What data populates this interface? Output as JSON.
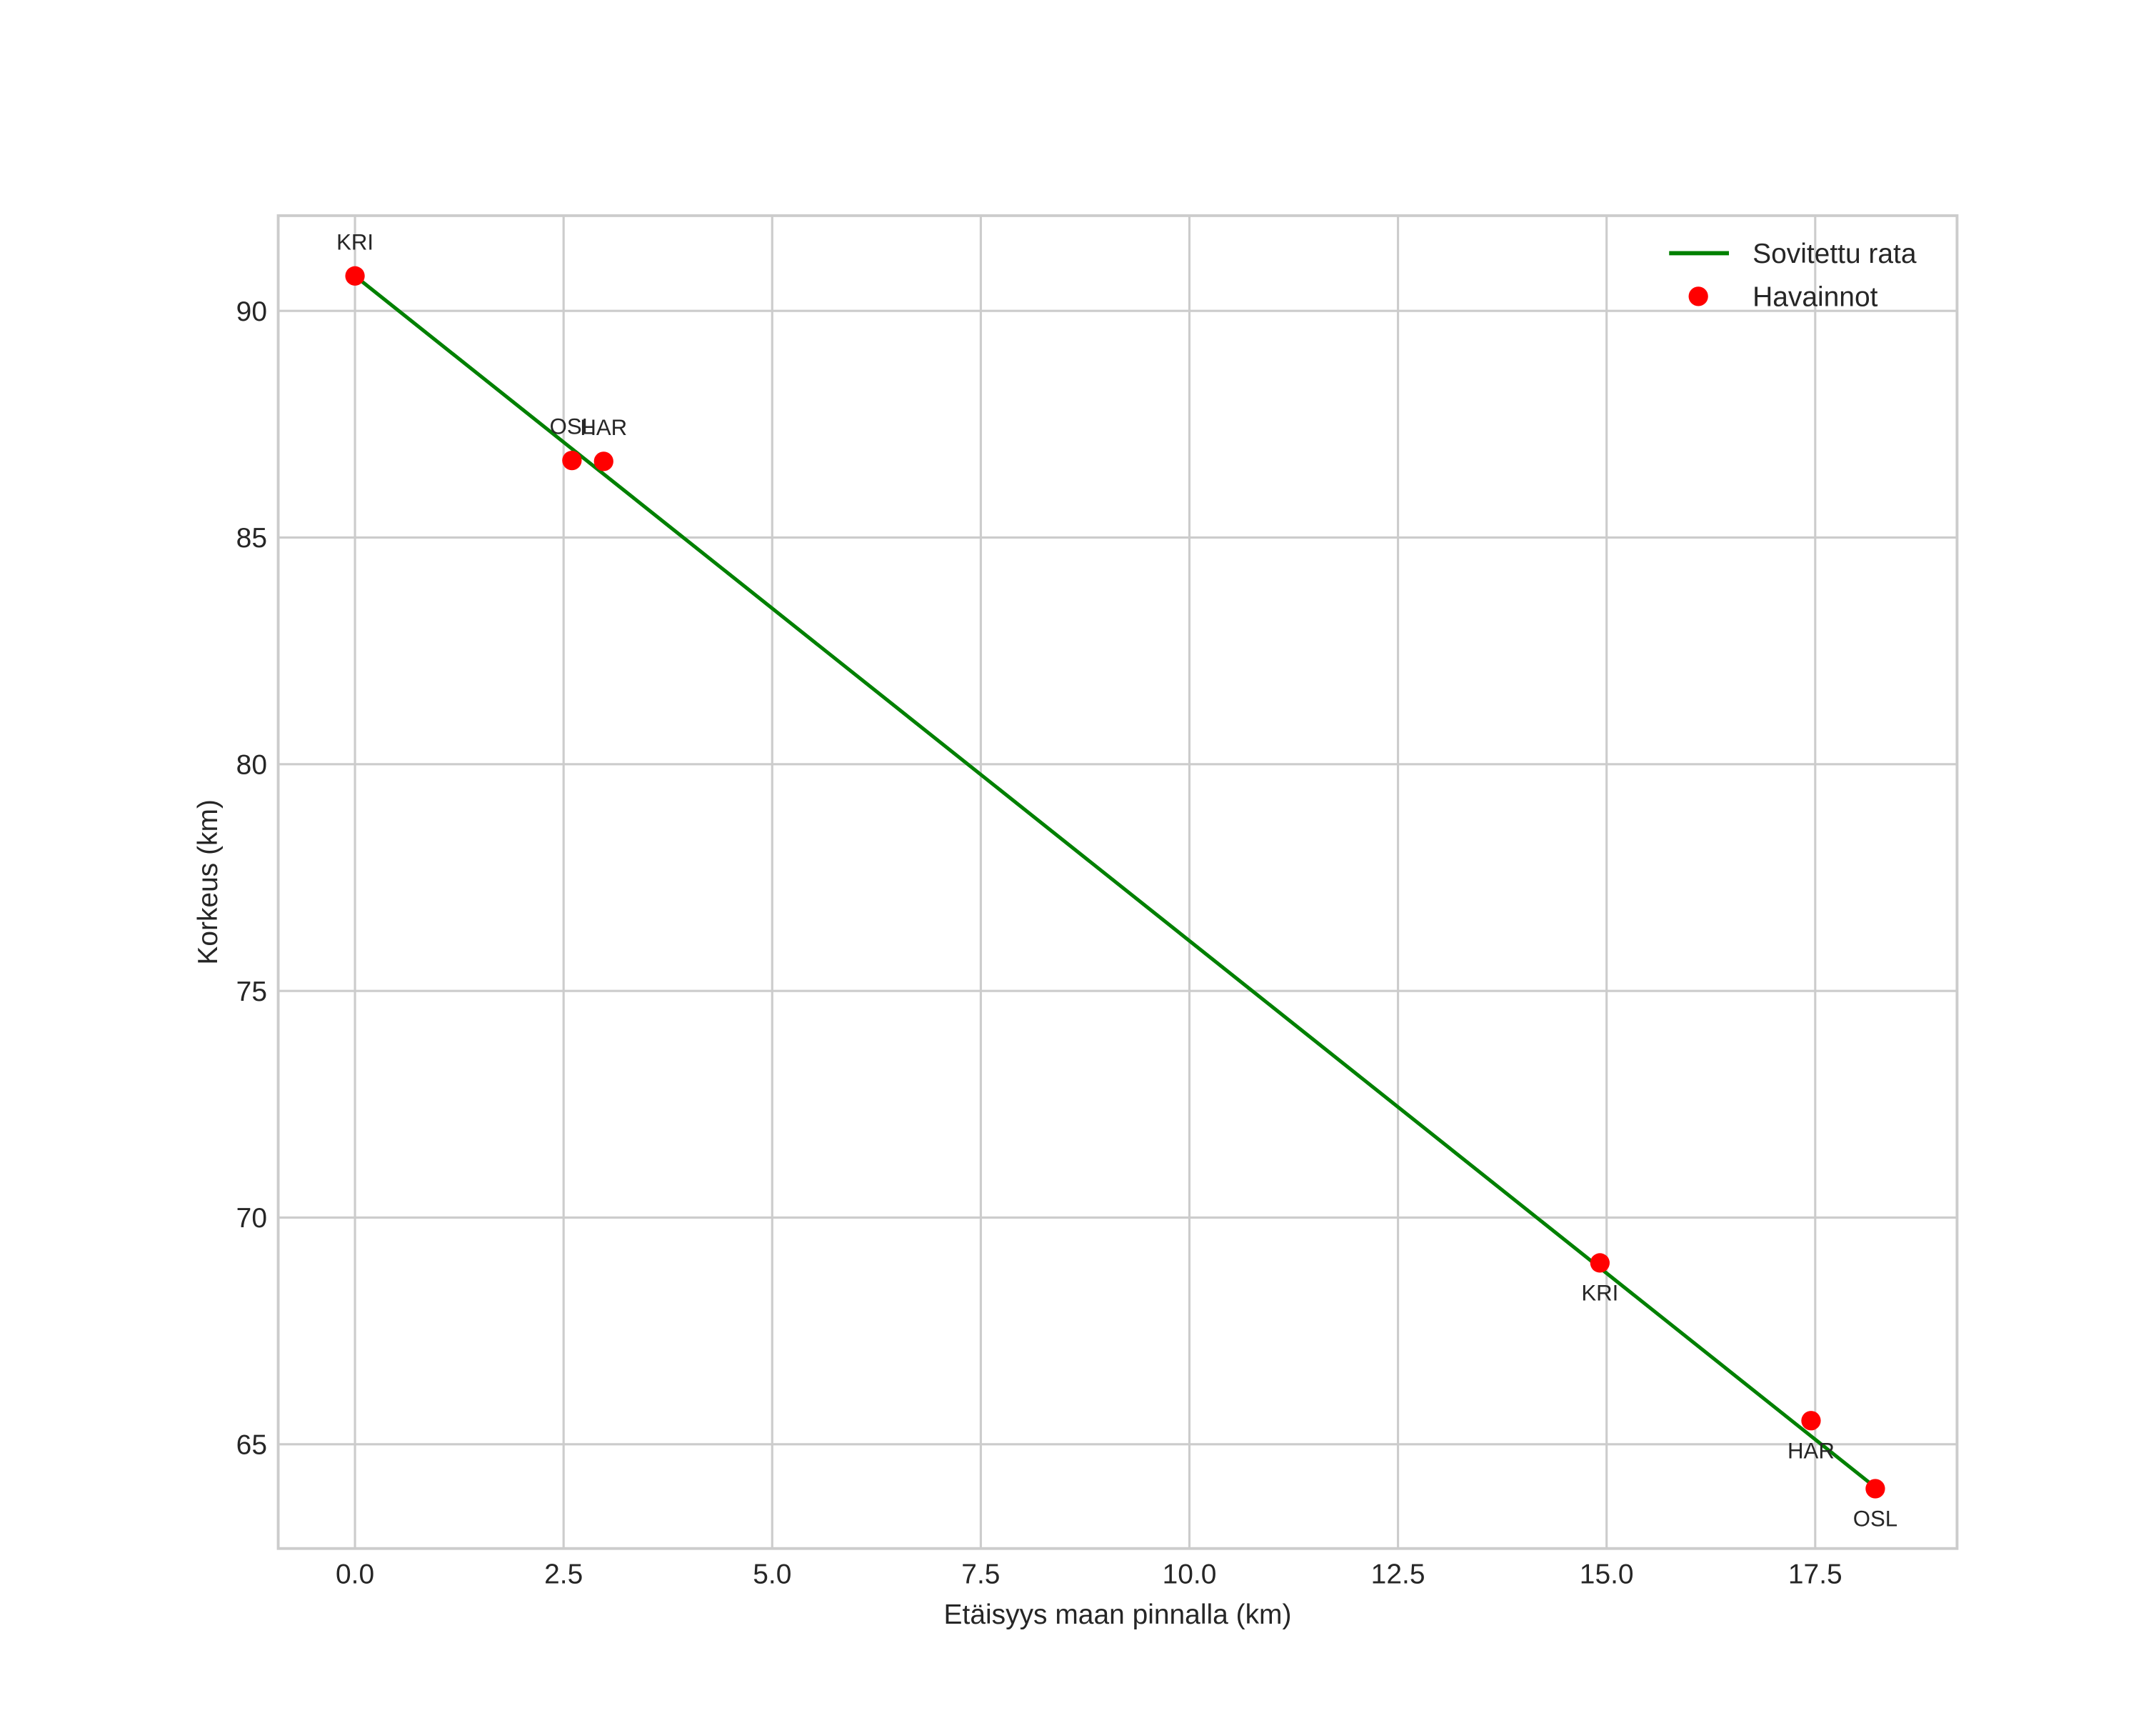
{
  "chart_data": {
    "type": "line",
    "title": "",
    "xlabel": "Etäisyys maan pinnalla (km)",
    "ylabel": "Korkeus (km)",
    "xlim": [
      -0.92,
      19.2
    ],
    "ylim": [
      62.7,
      92.1
    ],
    "grid": true,
    "legend_position": "upper right",
    "x_ticks": [
      0.0,
      2.5,
      5.0,
      7.5,
      10.0,
      12.5,
      15.0,
      17.5
    ],
    "x_tick_labels": [
      "0.0",
      "2.5",
      "5.0",
      "7.5",
      "10.0",
      "12.5",
      "15.0",
      "17.5"
    ],
    "y_ticks": [
      65,
      70,
      75,
      80,
      85,
      90
    ],
    "y_tick_labels": [
      "65",
      "70",
      "75",
      "80",
      "85",
      "90"
    ],
    "series": [
      {
        "name": "Sovitettu rata",
        "kind": "line",
        "color": "#008000",
        "x": [
          0.0,
          18.22
        ],
        "y": [
          90.77,
          64.05
        ]
      },
      {
        "name": "Havainnot",
        "kind": "scatter",
        "color": "#ff0000",
        "points": [
          {
            "label": "KRI",
            "x": 0.0,
            "y": 90.77,
            "label_pos": "above"
          },
          {
            "label": "OSL",
            "x": 2.6,
            "y": 86.7,
            "label_pos": "above"
          },
          {
            "label": "HAR",
            "x": 2.98,
            "y": 86.68,
            "label_pos": "above"
          },
          {
            "label": "KRI",
            "x": 14.92,
            "y": 69.0,
            "label_pos": "below"
          },
          {
            "label": "HAR",
            "x": 17.45,
            "y": 65.52,
            "label_pos": "below"
          },
          {
            "label": "OSL",
            "x": 18.22,
            "y": 64.02,
            "label_pos": "below"
          }
        ]
      }
    ]
  },
  "legend": {
    "items": [
      {
        "label": "Sovitettu rata",
        "symbol": "line",
        "color": "#008000"
      },
      {
        "label": "Havainnot",
        "symbol": "dot",
        "color": "#ff0000"
      }
    ]
  },
  "colors": {
    "grid": "#cccccc",
    "text": "#262626",
    "fit_line": "#008000",
    "observation": "#ff0000"
  }
}
